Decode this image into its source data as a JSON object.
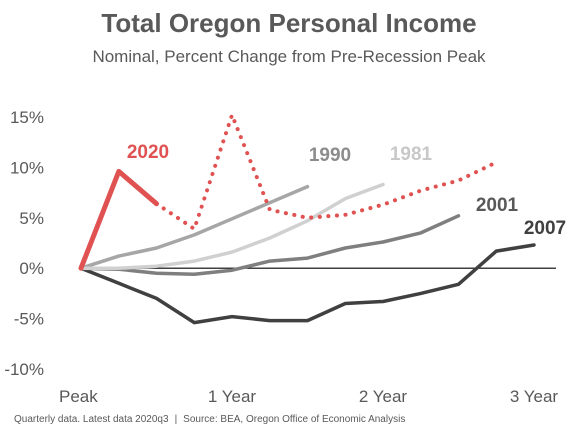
{
  "title": "Total Oregon Personal Income",
  "subtitle": "Nominal, Percent Change from Pre-Recession Peak",
  "footnote": {
    "left": "Quarterly data. Latest data 2020q3",
    "separator": "|",
    "right": "Source: BEA, Oregon Office of Economic Analysis"
  },
  "chart_data": {
    "type": "line",
    "title": "Total Oregon Personal Income",
    "subtitle": "Nominal, Percent Change from Pre-Recession Peak",
    "x_unit": "quarters since pre-recession peak",
    "xlim": [
      0,
      12
    ],
    "ylim": [
      -10,
      15
    ],
    "x_ticks": [
      {
        "value": 0,
        "label": "Peak"
      },
      {
        "value": 4,
        "label": "1 Year"
      },
      {
        "value": 8,
        "label": "2 Year"
      },
      {
        "value": 12,
        "label": "3 Year"
      }
    ],
    "y_ticks": [
      {
        "value": -10,
        "label": "-10%"
      },
      {
        "value": -5,
        "label": "-5%"
      },
      {
        "value": 0,
        "label": "0%"
      },
      {
        "value": 5,
        "label": "5%"
      },
      {
        "value": 10,
        "label": "10%"
      },
      {
        "value": 15,
        "label": "15%"
      }
    ],
    "grid": false,
    "zero_line": true,
    "series": [
      {
        "name": "2007",
        "color": "#404040",
        "style": "solid",
        "label_color": "#404040",
        "x": [
          0,
          1,
          2,
          3,
          4,
          5,
          6,
          7,
          8,
          9,
          10,
          11,
          12
        ],
        "values": [
          0,
          -1.5,
          -3.0,
          -5.4,
          -4.8,
          -5.2,
          -5.2,
          -3.5,
          -3.3,
          -2.5,
          -1.6,
          1.7,
          2.3
        ]
      },
      {
        "name": "2001",
        "color": "#7f7f7f",
        "style": "solid",
        "label_color": "#595959",
        "x": [
          0,
          1,
          2,
          3,
          4,
          5,
          6,
          7,
          8,
          9,
          10
        ],
        "values": [
          0,
          -0.1,
          -0.5,
          -0.6,
          -0.2,
          0.7,
          1.0,
          2.0,
          2.6,
          3.5,
          5.2
        ]
      },
      {
        "name": "1990",
        "color": "#a6a6a6",
        "style": "solid",
        "label_color": "#8c8c8c",
        "x": [
          0,
          1,
          2,
          3,
          4,
          5,
          6
        ],
        "values": [
          0,
          1.2,
          2.0,
          3.3,
          4.9,
          6.5,
          8.1
        ]
      },
      {
        "name": "1981",
        "color": "#d0d0d0",
        "style": "solid",
        "label_color": "#c8c8c8",
        "x": [
          0,
          1,
          2,
          3,
          4,
          5,
          6,
          7,
          8
        ],
        "values": [
          0,
          0,
          0.2,
          0.7,
          1.6,
          3.0,
          4.7,
          6.9,
          8.3
        ]
      },
      {
        "name": "2020",
        "color": "#e05252",
        "style": "solid",
        "label_color": "#e05252",
        "x": [
          0,
          1,
          2
        ],
        "values": [
          0,
          9.6,
          6.4
        ]
      },
      {
        "name": "",
        "color": "#e05252",
        "style": "dotted",
        "x": [
          2,
          3,
          4,
          5,
          6,
          7,
          8,
          9,
          10,
          11
        ],
        "values": [
          6.4,
          3.9,
          15.2,
          5.8,
          5.0,
          5.3,
          6.3,
          7.7,
          8.7,
          10.5
        ]
      }
    ]
  }
}
